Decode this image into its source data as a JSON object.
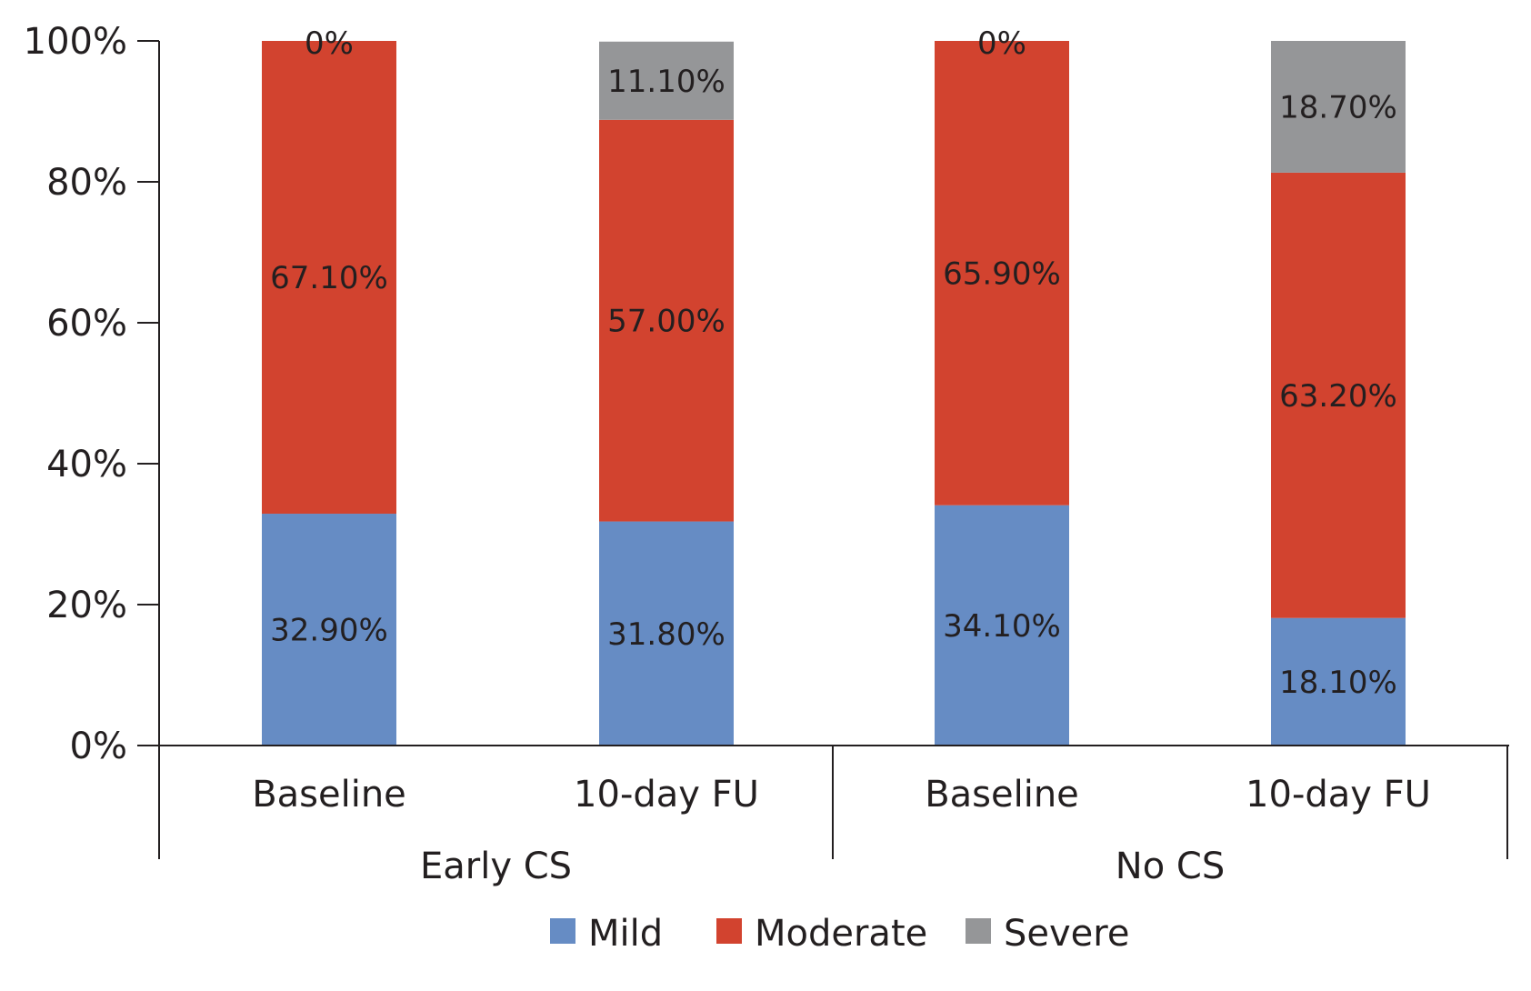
{
  "chart_data": {
    "type": "bar",
    "stacked": true,
    "groups": [
      "Early CS",
      "No CS"
    ],
    "categories": [
      "Baseline",
      "10-day FU",
      "Baseline",
      "10-day FU"
    ],
    "category_group": [
      "Early CS",
      "Early CS",
      "No CS",
      "No CS"
    ],
    "series": [
      {
        "name": "Mild",
        "color": "#668cc4",
        "values": [
          32.9,
          31.8,
          34.1,
          18.1
        ],
        "labels": [
          "32.90%",
          "31.80%",
          "34.10%",
          "18.10%"
        ]
      },
      {
        "name": "Moderate",
        "color": "#d2432f",
        "values": [
          67.1,
          57.0,
          65.9,
          63.2
        ],
        "labels": [
          "67.10%",
          "57.00%",
          "65.90%",
          "63.20%"
        ]
      },
      {
        "name": "Severe",
        "color": "#959698",
        "values": [
          0,
          11.1,
          0,
          18.7
        ],
        "labels": [
          "0%",
          "11.10%",
          "0%",
          "18.70%"
        ]
      }
    ],
    "ylim": [
      0,
      100
    ],
    "yticks": [
      0,
      20,
      40,
      60,
      80,
      100
    ],
    "ytick_labels": [
      "0%",
      "20%",
      "40%",
      "60%",
      "80%",
      "100%"
    ],
    "title": "",
    "xlabel": "",
    "ylabel": "",
    "legend_position": "bottom",
    "grid": false,
    "axis_color": "#231f20"
  }
}
